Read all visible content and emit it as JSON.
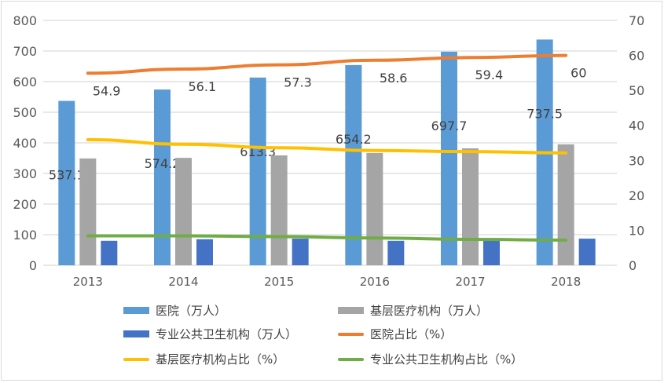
{
  "chart_data": {
    "type": "bar",
    "categories": [
      "2013",
      "2014",
      "2015",
      "2016",
      "2017",
      "2018"
    ],
    "y_left": {
      "range": [
        0,
        800
      ],
      "ticks": [
        0,
        100,
        200,
        300,
        400,
        500,
        600,
        700,
        800
      ]
    },
    "y_right": {
      "range": [
        0,
        70
      ],
      "ticks": [
        0,
        10,
        20,
        30,
        40,
        50,
        60,
        70
      ]
    },
    "grid": true,
    "legend_position": "bottom",
    "series": [
      {
        "name": "医院（万人）",
        "type": "bar",
        "axis": "left",
        "color": "#5b9bd5",
        "values": [
          537.1,
          574.2,
          613.3,
          654.2,
          697.7,
          737.5
        ],
        "labels": [
          "537.1",
          "574.2",
          "613.3",
          "654.2",
          "697.7",
          "737.5"
        ]
      },
      {
        "name": "基层医疗机构（万人）",
        "type": "bar",
        "axis": "left",
        "color": "#a5a5a5",
        "values": [
          349,
          351,
          359,
          367,
          382,
          395
        ]
      },
      {
        "name": "专业公共卫生机构（万人）",
        "type": "bar",
        "axis": "left",
        "color": "#4472c4",
        "values": [
          80,
          85,
          87,
          80,
          82,
          87
        ]
      },
      {
        "name": "医院占比（%）",
        "type": "line",
        "axis": "right",
        "color": "#ed7d31",
        "values": [
          54.9,
          56.1,
          57.3,
          58.6,
          59.4,
          60
        ],
        "labels": [
          "54.9",
          "56.1",
          "57.3",
          "58.6",
          "59.4",
          "60"
        ]
      },
      {
        "name": "基层医疗机构占比（%）",
        "type": "line",
        "axis": "right",
        "color": "#ffc000",
        "values": [
          35.9,
          34.6,
          33.6,
          32.8,
          32.5,
          32.1
        ]
      },
      {
        "name": "专业公共卫生机构占比（%）",
        "type": "line",
        "axis": "right",
        "color": "#70ad47",
        "values": [
          8.4,
          8.4,
          8.2,
          7.8,
          7.4,
          7.2
        ]
      }
    ]
  }
}
